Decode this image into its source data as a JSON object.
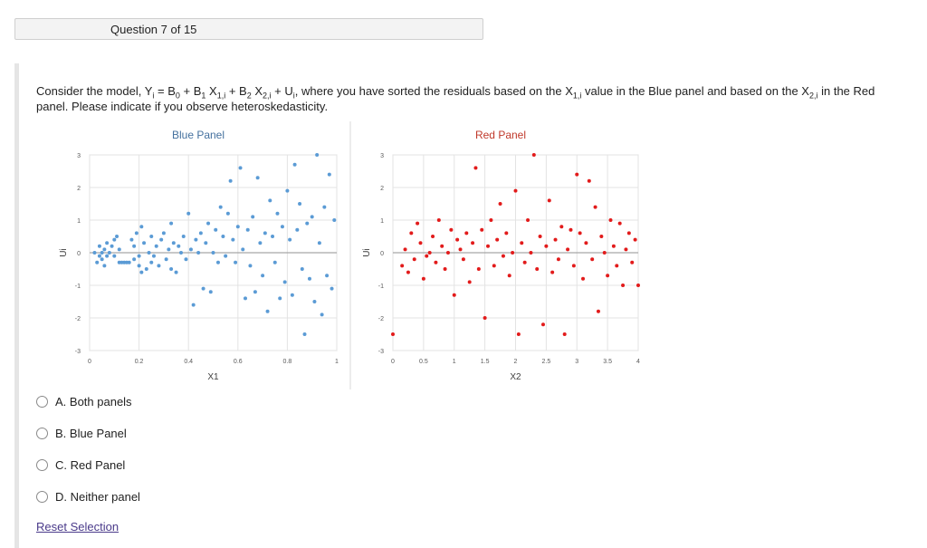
{
  "header": {
    "question_label": "Question 7 of 15"
  },
  "question": {
    "p1": "Consider the model, Y",
    "s1": "i",
    "p2": " = B",
    "s2": "0",
    "p3": " + B",
    "s3": "1",
    "p4": " X",
    "s4": "1,i",
    "p5": " + B",
    "s5": "2",
    "p6": " X",
    "s6": "2,i",
    "p7": " + U",
    "s7": "i",
    "p8": ", where you have sorted the residuals based on the X",
    "s8": "1,i",
    "p9": " value in the Blue panel and based on the X",
    "s9": "2,i",
    "p10": " in the Red panel. Please indicate if you observe heteroskedasticity."
  },
  "chart_data": [
    {
      "type": "scatter",
      "title": "Blue Panel",
      "xlabel": "X1",
      "ylabel": "Ui",
      "xlim": [
        0,
        1
      ],
      "ylim": [
        -3,
        3
      ],
      "xticks": [
        "0",
        "0.2",
        "0.4",
        "0.6",
        "0.8",
        "1"
      ],
      "yticks": [
        "-3",
        "-2",
        "-1",
        "0",
        "1",
        "2",
        "3"
      ],
      "grid": true,
      "color": "#5b9bd5",
      "points": [
        [
          0.02,
          0.0
        ],
        [
          0.03,
          -0.3
        ],
        [
          0.04,
          -0.1
        ],
        [
          0.04,
          0.2
        ],
        [
          0.05,
          -0.2
        ],
        [
          0.05,
          0.0
        ],
        [
          0.06,
          0.1
        ],
        [
          0.06,
          -0.4
        ],
        [
          0.07,
          0.3
        ],
        [
          0.07,
          -0.1
        ],
        [
          0.08,
          0.0
        ],
        [
          0.09,
          0.2
        ],
        [
          0.1,
          -0.1
        ],
        [
          0.1,
          0.4
        ],
        [
          0.11,
          0.5
        ],
        [
          0.12,
          -0.3
        ],
        [
          0.12,
          0.1
        ],
        [
          0.13,
          -0.3
        ],
        [
          0.14,
          -0.3
        ],
        [
          0.15,
          -0.3
        ],
        [
          0.16,
          -0.3
        ],
        [
          0.17,
          0.4
        ],
        [
          0.18,
          0.2
        ],
        [
          0.18,
          -0.2
        ],
        [
          0.19,
          0.6
        ],
        [
          0.2,
          -0.4
        ],
        [
          0.2,
          -0.1
        ],
        [
          0.21,
          0.8
        ],
        [
          0.21,
          -0.6
        ],
        [
          0.22,
          0.3
        ],
        [
          0.23,
          -0.5
        ],
        [
          0.24,
          0.0
        ],
        [
          0.25,
          0.5
        ],
        [
          0.25,
          -0.3
        ],
        [
          0.26,
          -0.1
        ],
        [
          0.27,
          0.2
        ],
        [
          0.28,
          -0.4
        ],
        [
          0.29,
          0.4
        ],
        [
          0.3,
          0.6
        ],
        [
          0.31,
          -0.2
        ],
        [
          0.32,
          0.1
        ],
        [
          0.33,
          0.9
        ],
        [
          0.33,
          -0.5
        ],
        [
          0.34,
          0.3
        ],
        [
          0.35,
          -0.6
        ],
        [
          0.36,
          0.2
        ],
        [
          0.37,
          0.0
        ],
        [
          0.38,
          0.5
        ],
        [
          0.39,
          -0.2
        ],
        [
          0.4,
          1.2
        ],
        [
          0.41,
          0.1
        ],
        [
          0.42,
          -1.6
        ],
        [
          0.43,
          0.4
        ],
        [
          0.44,
          0.0
        ],
        [
          0.45,
          0.6
        ],
        [
          0.46,
          -1.1
        ],
        [
          0.47,
          0.3
        ],
        [
          0.48,
          0.9
        ],
        [
          0.49,
          -1.2
        ],
        [
          0.5,
          0.0
        ],
        [
          0.51,
          0.7
        ],
        [
          0.52,
          -0.3
        ],
        [
          0.53,
          1.4
        ],
        [
          0.54,
          0.5
        ],
        [
          0.55,
          -0.1
        ],
        [
          0.56,
          1.2
        ],
        [
          0.57,
          2.2
        ],
        [
          0.58,
          0.4
        ],
        [
          0.59,
          -0.3
        ],
        [
          0.6,
          0.8
        ],
        [
          0.61,
          2.6
        ],
        [
          0.62,
          0.1
        ],
        [
          0.63,
          -1.4
        ],
        [
          0.64,
          0.7
        ],
        [
          0.65,
          -0.4
        ],
        [
          0.66,
          1.1
        ],
        [
          0.67,
          -1.2
        ],
        [
          0.68,
          2.3
        ],
        [
          0.69,
          0.3
        ],
        [
          0.7,
          -0.7
        ],
        [
          0.71,
          0.6
        ],
        [
          0.72,
          -1.8
        ],
        [
          0.73,
          1.6
        ],
        [
          0.74,
          0.5
        ],
        [
          0.75,
          -0.3
        ],
        [
          0.76,
          1.2
        ],
        [
          0.77,
          -1.4
        ],
        [
          0.78,
          0.8
        ],
        [
          0.79,
          -0.9
        ],
        [
          0.8,
          1.9
        ],
        [
          0.81,
          0.4
        ],
        [
          0.82,
          -1.3
        ],
        [
          0.83,
          2.7
        ],
        [
          0.84,
          0.7
        ],
        [
          0.85,
          1.5
        ],
        [
          0.86,
          -0.5
        ],
        [
          0.87,
          -2.5
        ],
        [
          0.88,
          0.9
        ],
        [
          0.89,
          -0.8
        ],
        [
          0.9,
          1.1
        ],
        [
          0.91,
          -1.5
        ],
        [
          0.92,
          3.0
        ],
        [
          0.93,
          0.3
        ],
        [
          0.94,
          -1.9
        ],
        [
          0.95,
          1.4
        ],
        [
          0.96,
          -0.7
        ],
        [
          0.97,
          2.4
        ],
        [
          0.98,
          -1.1
        ],
        [
          0.99,
          1.0
        ]
      ]
    },
    {
      "type": "scatter",
      "title": "Red Panel",
      "xlabel": "X2",
      "ylabel": "Ui",
      "xlim": [
        0,
        4
      ],
      "ylim": [
        -3,
        3
      ],
      "xticks": [
        "0",
        "0.5",
        "1",
        "1.5",
        "2",
        "2.5",
        "3",
        "3.5",
        "4"
      ],
      "yticks": [
        "-3",
        "-2",
        "-1",
        "0",
        "1",
        "2",
        "3"
      ],
      "grid": true,
      "color": "#e21b1b",
      "points": [
        [
          0.0,
          -2.5
        ],
        [
          0.15,
          -0.4
        ],
        [
          0.2,
          0.1
        ],
        [
          0.25,
          -0.6
        ],
        [
          0.3,
          0.6
        ],
        [
          0.35,
          -0.2
        ],
        [
          0.4,
          0.9
        ],
        [
          0.45,
          0.3
        ],
        [
          0.5,
          -0.8
        ],
        [
          0.55,
          -0.1
        ],
        [
          0.6,
          0.0
        ],
        [
          0.65,
          0.5
        ],
        [
          0.7,
          -0.3
        ],
        [
          0.75,
          1.0
        ],
        [
          0.8,
          0.2
        ],
        [
          0.85,
          -0.5
        ],
        [
          0.9,
          0.0
        ],
        [
          0.95,
          0.7
        ],
        [
          1.0,
          -1.3
        ],
        [
          1.05,
          0.4
        ],
        [
          1.1,
          0.1
        ],
        [
          1.15,
          -0.2
        ],
        [
          1.2,
          0.6
        ],
        [
          1.25,
          -0.9
        ],
        [
          1.3,
          0.3
        ],
        [
          1.35,
          2.6
        ],
        [
          1.4,
          -0.5
        ],
        [
          1.45,
          0.7
        ],
        [
          1.5,
          -2.0
        ],
        [
          1.55,
          0.2
        ],
        [
          1.6,
          1.0
        ],
        [
          1.65,
          -0.4
        ],
        [
          1.7,
          0.4
        ],
        [
          1.75,
          1.5
        ],
        [
          1.8,
          -0.1
        ],
        [
          1.85,
          0.6
        ],
        [
          1.9,
          -0.7
        ],
        [
          1.95,
          0.0
        ],
        [
          2.0,
          1.9
        ],
        [
          2.05,
          -2.5
        ],
        [
          2.1,
          0.3
        ],
        [
          2.15,
          -0.3
        ],
        [
          2.2,
          1.0
        ],
        [
          2.25,
          0.0
        ],
        [
          2.3,
          3.0
        ],
        [
          2.35,
          -0.5
        ],
        [
          2.4,
          0.5
        ],
        [
          2.45,
          -2.2
        ],
        [
          2.5,
          0.2
        ],
        [
          2.55,
          1.6
        ],
        [
          2.6,
          -0.6
        ],
        [
          2.65,
          0.4
        ],
        [
          2.7,
          -0.2
        ],
        [
          2.75,
          0.8
        ],
        [
          2.8,
          -2.5
        ],
        [
          2.85,
          0.1
        ],
        [
          2.9,
          0.7
        ],
        [
          2.95,
          -0.4
        ],
        [
          3.0,
          2.4
        ],
        [
          3.05,
          0.6
        ],
        [
          3.1,
          -0.8
        ],
        [
          3.15,
          0.3
        ],
        [
          3.2,
          2.2
        ],
        [
          3.25,
          -0.2
        ],
        [
          3.3,
          1.4
        ],
        [
          3.35,
          -1.8
        ],
        [
          3.4,
          0.5
        ],
        [
          3.45,
          0.0
        ],
        [
          3.5,
          -0.7
        ],
        [
          3.55,
          1.0
        ],
        [
          3.6,
          0.2
        ],
        [
          3.65,
          -0.4
        ],
        [
          3.7,
          0.9
        ],
        [
          3.75,
          -1.0
        ],
        [
          3.8,
          0.1
        ],
        [
          3.85,
          0.6
        ],
        [
          3.9,
          -0.3
        ],
        [
          3.95,
          0.4
        ],
        [
          4.0,
          -1.0
        ]
      ]
    }
  ],
  "answers": [
    {
      "label": "A. Both panels"
    },
    {
      "label": "B. Blue Panel"
    },
    {
      "label": "C. Red Panel"
    },
    {
      "label": "D. Neither panel"
    }
  ],
  "reset_label": "Reset Selection"
}
